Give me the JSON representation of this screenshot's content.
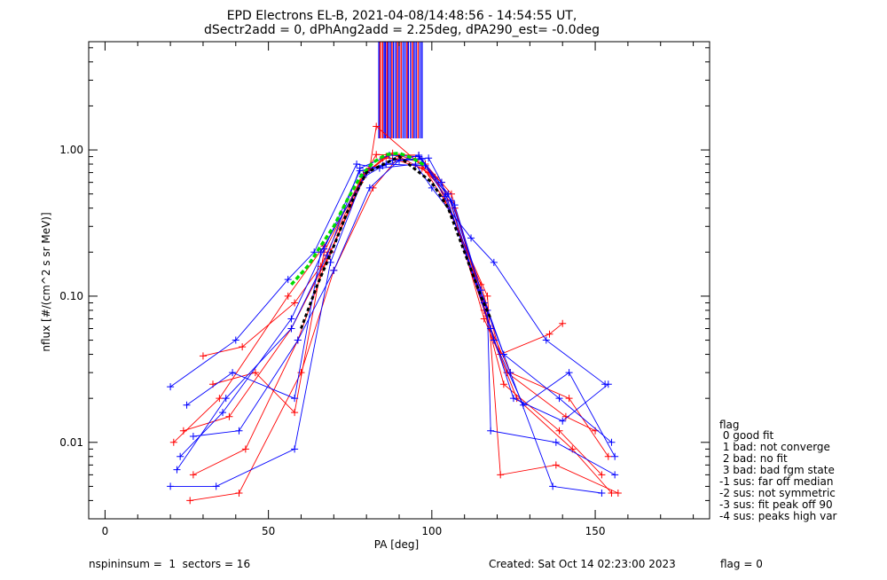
{
  "title_line1": "EPD Electrons EL-B, 2021-04-08/14:48:56 - 14:54:55 UT,",
  "title_line2": "dSectr2add = 0, dPhAng2add = 2.25deg, dPA290_est=  -0.0deg",
  "footer": {
    "left": "nspininsum =  1  sectors = 16",
    "created": "Created: Sat Oct 14 02:23:00 2023",
    "flag": "flag = 0"
  },
  "legend": {
    "title": "flag",
    "items": [
      " 0 good fit",
      " 1 bad: not converge",
      " 2 bad: no fit",
      " 3 bad: bad fgm state",
      "-1 sus: far off median",
      "-2 sus: not symmetric",
      "-3 sus: fit peak off 90",
      "-4 sus: peaks high var"
    ]
  },
  "colors": {
    "series_a": "#ff0000",
    "series_b": "#0000ff",
    "fit": "#00dd00",
    "median": "#000000"
  },
  "chart_data": {
    "type": "line",
    "title": "EPD Electrons EL-B, 2021-04-08/14:48:56 - 14:54:55 UT,",
    "xlabel": "PA [deg]",
    "ylabel": "nflux [#/(cm^2 s sr MeV)]",
    "xlim": [
      -5,
      185
    ],
    "ylim": [
      0.003,
      5.5
    ],
    "yscale": "log",
    "x_ticks": [
      0,
      50,
      100,
      150
    ],
    "y_ticks": [
      0.01,
      0.1,
      1.0
    ],
    "y_tick_labels": [
      "0.01",
      "0.10",
      "1.00"
    ],
    "grid": false,
    "markers": "+",
    "series": [
      {
        "color": "red",
        "x": [
          30,
          42,
          58,
          66,
          78,
          83,
          96,
          101,
          115,
          121,
          136,
          140
        ],
        "y": [
          0.039,
          0.045,
          0.09,
          0.16,
          0.6,
          0.93,
          0.92,
          0.65,
          0.12,
          0.04,
          0.055,
          0.065
        ]
      },
      {
        "color": "red",
        "x": [
          24,
          38,
          57,
          69,
          80,
          88,
          98,
          106,
          118,
          124,
          142,
          154
        ],
        "y": [
          0.012,
          0.015,
          0.06,
          0.2,
          0.7,
          0.95,
          0.8,
          0.5,
          0.06,
          0.03,
          0.02,
          0.008
        ]
      },
      {
        "color": "red",
        "x": [
          27,
          43,
          59,
          68,
          79,
          85,
          95,
          103,
          116,
          122,
          139,
          152
        ],
        "y": [
          0.006,
          0.009,
          0.05,
          0.18,
          0.65,
          0.88,
          0.85,
          0.6,
          0.08,
          0.025,
          0.012,
          0.006
        ]
      },
      {
        "color": "red",
        "x": [
          21,
          35,
          56,
          67,
          81,
          83,
          97,
          104,
          117,
          121,
          138,
          157
        ],
        "y": [
          0.01,
          0.02,
          0.1,
          0.22,
          0.75,
          1.45,
          0.78,
          0.45,
          0.1,
          0.006,
          0.007,
          0.0045
        ]
      },
      {
        "color": "red",
        "x": [
          26,
          41,
          60,
          70,
          82,
          90,
          99,
          107,
          119,
          126,
          143,
          155
        ],
        "y": [
          0.004,
          0.0045,
          0.03,
          0.15,
          0.55,
          0.9,
          0.7,
          0.4,
          0.05,
          0.02,
          0.009,
          0.0045
        ]
      },
      {
        "color": "red",
        "x": [
          33,
          46,
          58,
          67,
          79,
          86,
          97,
          105,
          116,
          123,
          141,
          150
        ],
        "y": [
          0.025,
          0.03,
          0.016,
          0.2,
          0.68,
          0.9,
          0.75,
          0.5,
          0.07,
          0.03,
          0.015,
          0.012
        ]
      },
      {
        "color": "blue",
        "x": [
          20,
          40,
          56,
          64,
          77,
          84,
          95,
          100,
          112,
          119,
          135,
          153
        ],
        "y": [
          0.024,
          0.05,
          0.13,
          0.2,
          0.8,
          0.75,
          0.8,
          0.55,
          0.25,
          0.17,
          0.05,
          0.025
        ]
      },
      {
        "color": "blue",
        "x": [
          22,
          37,
          57,
          68,
          78,
          87,
          96,
          106,
          117,
          118,
          138,
          156
        ],
        "y": [
          0.0065,
          0.02,
          0.06,
          0.19,
          0.75,
          0.92,
          0.9,
          0.45,
          0.08,
          0.012,
          0.01,
          0.006
        ]
      },
      {
        "color": "blue",
        "x": [
          25,
          39,
          58,
          66,
          80,
          88,
          99,
          103,
          118,
          125,
          140,
          154
        ],
        "y": [
          0.018,
          0.03,
          0.02,
          0.2,
          0.7,
          0.85,
          0.88,
          0.6,
          0.06,
          0.02,
          0.014,
          0.025
        ]
      },
      {
        "color": "blue",
        "x": [
          20,
          34,
          58,
          69,
          79,
          86,
          98,
          107,
          115,
          124,
          137,
          152
        ],
        "y": [
          0.005,
          0.005,
          0.009,
          0.17,
          0.65,
          0.8,
          0.78,
          0.42,
          0.11,
          0.03,
          0.005,
          0.0045
        ]
      },
      {
        "color": "blue",
        "x": [
          27,
          41,
          59,
          70,
          81,
          90,
          97,
          105,
          119,
          128,
          142,
          156
        ],
        "y": [
          0.011,
          0.012,
          0.05,
          0.15,
          0.55,
          0.85,
          0.86,
          0.5,
          0.05,
          0.018,
          0.03,
          0.008
        ]
      },
      {
        "color": "blue",
        "x": [
          23,
          36,
          57,
          67,
          78,
          85,
          96,
          104,
          116,
          122,
          139,
          155
        ],
        "y": [
          0.008,
          0.016,
          0.07,
          0.21,
          0.72,
          0.78,
          0.92,
          0.48,
          0.09,
          0.04,
          0.02,
          0.01
        ]
      }
    ],
    "fit_curve": {
      "color": "green",
      "style": "dashed",
      "x": [
        57,
        62,
        66,
        70,
        74,
        78,
        82,
        86,
        90,
        94,
        98
      ],
      "y": [
        0.12,
        0.16,
        0.22,
        0.3,
        0.45,
        0.65,
        0.82,
        0.93,
        0.95,
        0.88,
        0.78
      ]
    },
    "median_curve": {
      "color": "black",
      "style": "dashed",
      "x": [
        60,
        65,
        70,
        75,
        80,
        90,
        100,
        105,
        110,
        115,
        118
      ],
      "y": [
        0.06,
        0.12,
        0.22,
        0.42,
        0.7,
        0.9,
        0.6,
        0.4,
        0.2,
        0.1,
        0.07
      ]
    },
    "vertical_lines": {
      "y_from": 1.2,
      "y_to": 5.5,
      "red_x": [
        84.2,
        84.9,
        86.3,
        87.8,
        89.5,
        90.6,
        92.4,
        94.1,
        95.8
      ],
      "blue_x": [
        83.8,
        85.4,
        85.8,
        86.7,
        87.3,
        88.3,
        89.0,
        90.0,
        91.2,
        91.8,
        92.8,
        93.5,
        94.6,
        95.2,
        96.4,
        97.0
      ]
    }
  }
}
